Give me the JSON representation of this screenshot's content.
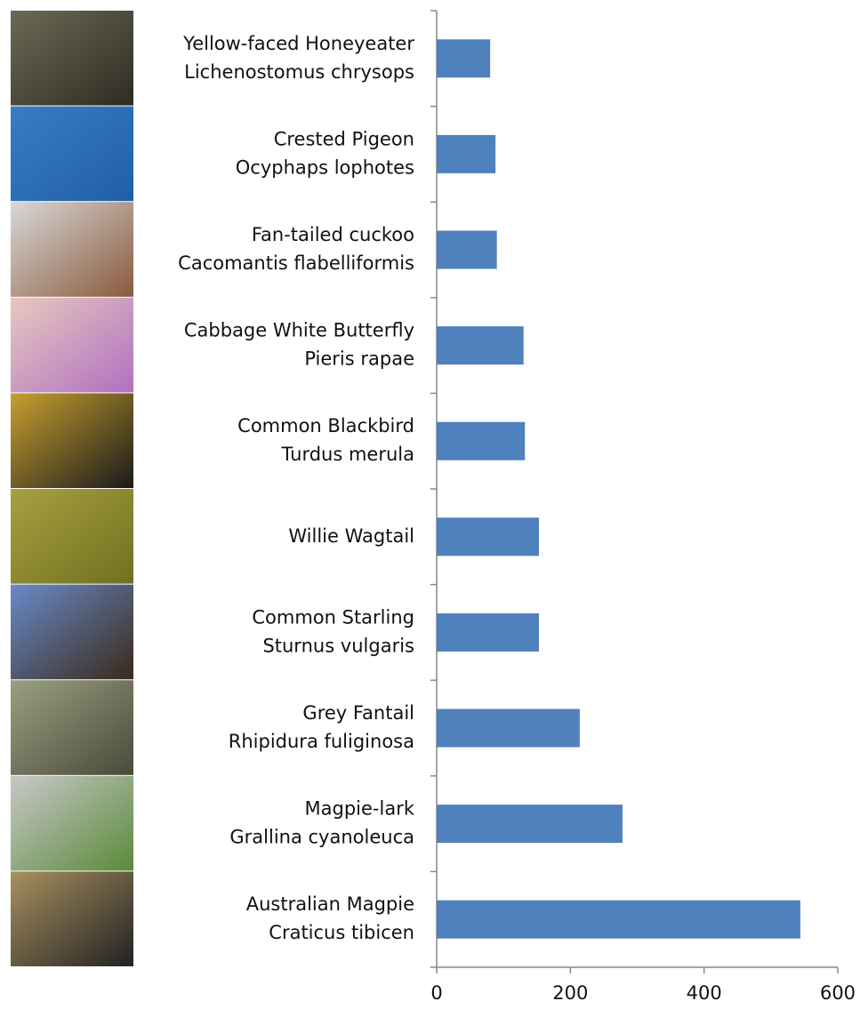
{
  "chart_data": {
    "type": "barh",
    "categories": [
      "Yellow-faced Honeyeater",
      "Crested Pigeon",
      "Fan-tailed cuckoo",
      "Cabbage White Butterfly",
      "Common Blackbird",
      "Willie Wagtail",
      "Common Starling",
      "Grey Fantail",
      "Magpie-lark",
      "Australian Magpie"
    ],
    "scientific_names": [
      "Lichenostomus chrysops",
      "Ocyphaps lophotes",
      "Cacomantis flabelliformis",
      "Pieris rapae",
      "Turdus merula",
      null,
      "Sturnus vulgaris",
      "Rhipidura fuliginosa",
      "Grallina cyanoleuca",
      "Craticus tibicen"
    ],
    "values": [
      80,
      88,
      90,
      130,
      132,
      153,
      153,
      214,
      278,
      544
    ],
    "color": "#4f81bd",
    "xlim": [
      0,
      600
    ],
    "xticks": [
      0,
      200,
      400,
      600
    ],
    "grid": false
  }
}
